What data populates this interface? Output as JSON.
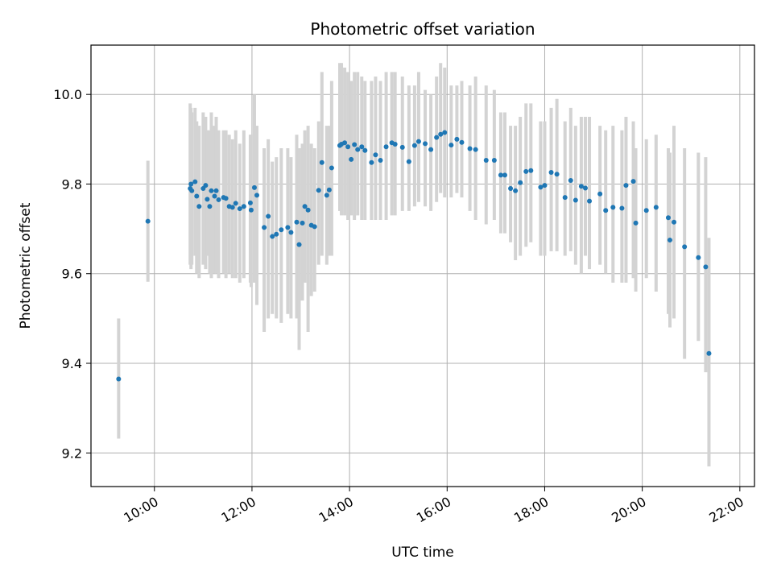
{
  "chart_data": {
    "type": "scatter",
    "title": "Photometric offset variation",
    "xlabel": "UTC time",
    "ylabel": "Photometric offset",
    "x_axis_type": "time",
    "xlim": [
      "08:42",
      "22:18"
    ],
    "ylim": [
      9.125,
      10.11
    ],
    "x_ticks": [
      "10:00",
      "12:00",
      "14:00",
      "16:00",
      "18:00",
      "20:00",
      "22:00"
    ],
    "y_ticks": [
      9.2,
      9.4,
      9.6,
      9.8,
      10.0
    ],
    "y_tick_labels": [
      "9.2",
      "9.4",
      "9.6",
      "9.8",
      "10.0"
    ],
    "grid": true,
    "colors": {
      "points": "#1f77b4",
      "error_bars": "#d3d3d3",
      "grid": "#b0b0b0",
      "axes": "#000000"
    },
    "series": [
      {
        "x": [
          "09:16",
          "09:52",
          "10:44",
          "10:45",
          "10:46",
          "10:50",
          "10:52",
          "10:55",
          "11:00",
          "11:03",
          "11:05",
          "11:08",
          "11:10",
          "11:14",
          "11:16",
          "11:19",
          "11:25",
          "11:28",
          "11:32",
          "11:36",
          "11:40",
          "11:45",
          "11:50",
          "11:58",
          "11:59",
          "12:03",
          "12:06",
          "12:15",
          "12:20",
          "12:25",
          "12:30",
          "12:36",
          "12:44",
          "12:48",
          "12:55",
          "12:58",
          "13:02",
          "13:05",
          "13:09",
          "13:13",
          "13:17",
          "13:22",
          "13:26",
          "13:32",
          "13:35",
          "13:38",
          "13:48",
          "13:50",
          "13:54",
          "13:58",
          "14:02",
          "14:06",
          "14:10",
          "14:15",
          "14:19",
          "14:27",
          "14:32",
          "14:38",
          "14:45",
          "14:52",
          "14:56",
          "15:05",
          "15:13",
          "15:20",
          "15:25",
          "15:33",
          "15:40",
          "15:47",
          "15:52",
          "15:57",
          "16:05",
          "16:12",
          "16:18",
          "16:28",
          "16:35",
          "16:48",
          "16:58",
          "17:06",
          "17:11",
          "17:18",
          "17:24",
          "17:30",
          "17:37",
          "17:43",
          "17:55",
          "18:00",
          "18:08",
          "18:15",
          "18:25",
          "18:32",
          "18:38",
          "18:45",
          "18:50",
          "18:55",
          "19:08",
          "19:15",
          "19:24",
          "19:35",
          "19:40",
          "19:49",
          "19:52",
          "20:05",
          "20:17",
          "20:32",
          "20:34",
          "20:39",
          "20:52",
          "21:09",
          "21:18",
          "21:22"
        ],
        "y": [
          9.365,
          9.717,
          9.79,
          9.8,
          9.785,
          9.805,
          9.773,
          9.75,
          9.79,
          9.797,
          9.766,
          9.75,
          9.785,
          9.773,
          9.785,
          9.765,
          9.77,
          9.768,
          9.75,
          9.748,
          9.757,
          9.745,
          9.75,
          9.758,
          9.742,
          9.792,
          9.775,
          9.703,
          9.728,
          9.683,
          9.688,
          9.698,
          9.703,
          9.692,
          9.715,
          9.665,
          9.713,
          9.75,
          9.742,
          9.708,
          9.705,
          9.786,
          9.848,
          9.775,
          9.787,
          9.836,
          9.886,
          9.889,
          9.892,
          9.883,
          9.855,
          9.888,
          9.877,
          9.883,
          9.875,
          9.848,
          9.865,
          9.853,
          9.883,
          9.892,
          9.889,
          9.882,
          9.85,
          9.886,
          9.895,
          9.89,
          9.877,
          9.904,
          9.911,
          9.915,
          9.887,
          9.9,
          9.893,
          9.879,
          9.877,
          9.853,
          9.853,
          9.82,
          9.82,
          9.79,
          9.785,
          9.803,
          9.828,
          9.83,
          9.793,
          9.797,
          9.826,
          9.822,
          9.77,
          9.808,
          9.764,
          9.795,
          9.791,
          9.762,
          9.778,
          9.741,
          9.748,
          9.746,
          9.797,
          9.806,
          9.713,
          9.741,
          9.748,
          9.725,
          9.675,
          9.715,
          9.66,
          9.636,
          9.615,
          9.422
        ],
        "y_err_low": [
          9.232,
          9.582,
          9.62,
          9.61,
          9.62,
          9.64,
          9.6,
          9.59,
          9.62,
          9.61,
          9.64,
          9.6,
          9.59,
          9.6,
          9.6,
          9.59,
          9.6,
          9.59,
          9.6,
          9.59,
          9.59,
          9.58,
          9.59,
          9.58,
          9.57,
          9.58,
          9.53,
          9.47,
          9.5,
          9.51,
          9.5,
          9.49,
          9.51,
          9.5,
          9.5,
          9.43,
          9.54,
          9.58,
          9.47,
          9.55,
          9.56,
          9.62,
          9.64,
          9.62,
          9.64,
          9.64,
          9.74,
          9.73,
          9.73,
          9.72,
          9.73,
          9.72,
          9.73,
          9.72,
          9.72,
          9.72,
          9.72,
          9.72,
          9.72,
          9.73,
          9.73,
          9.74,
          9.74,
          9.75,
          9.76,
          9.75,
          9.74,
          9.76,
          9.78,
          9.77,
          9.77,
          9.78,
          9.77,
          9.74,
          9.72,
          9.71,
          9.72,
          9.69,
          9.69,
          9.67,
          9.63,
          9.64,
          9.66,
          9.67,
          9.64,
          9.64,
          9.65,
          9.65,
          9.64,
          9.65,
          9.62,
          9.6,
          9.64,
          9.61,
          9.62,
          9.6,
          9.58,
          9.58,
          9.58,
          9.59,
          9.56,
          9.59,
          9.56,
          9.51,
          9.48,
          9.5,
          9.41,
          9.45,
          9.38,
          9.17
        ],
        "y_err_high": [
          9.5,
          9.852,
          9.98,
          9.97,
          9.96,
          9.97,
          9.94,
          9.93,
          9.96,
          9.95,
          9.92,
          9.92,
          9.96,
          9.93,
          9.95,
          9.92,
          9.92,
          9.92,
          9.91,
          9.9,
          9.92,
          9.89,
          9.92,
          9.91,
          9.91,
          10.0,
          9.93,
          9.88,
          9.9,
          9.85,
          9.86,
          9.88,
          9.88,
          9.86,
          9.91,
          9.88,
          9.89,
          9.92,
          9.93,
          9.89,
          9.88,
          9.94,
          10.05,
          9.93,
          9.93,
          10.03,
          10.07,
          10.07,
          10.06,
          10.05,
          10.03,
          10.05,
          10.05,
          10.04,
          10.03,
          10.03,
          10.04,
          10.03,
          10.05,
          10.05,
          10.05,
          10.04,
          10.02,
          10.02,
          10.05,
          10.01,
          10.0,
          10.04,
          10.07,
          10.06,
          10.02,
          10.02,
          10.03,
          10.02,
          10.04,
          10.02,
          10.01,
          9.96,
          9.96,
          9.93,
          9.93,
          9.95,
          9.98,
          9.98,
          9.94,
          9.94,
          9.97,
          9.99,
          9.94,
          9.97,
          9.93,
          9.95,
          9.95,
          9.95,
          9.93,
          9.92,
          9.93,
          9.92,
          9.95,
          9.94,
          9.88,
          9.9,
          9.91,
          9.88,
          9.87,
          9.93,
          9.88,
          9.87,
          9.86,
          9.68
        ]
      }
    ]
  }
}
